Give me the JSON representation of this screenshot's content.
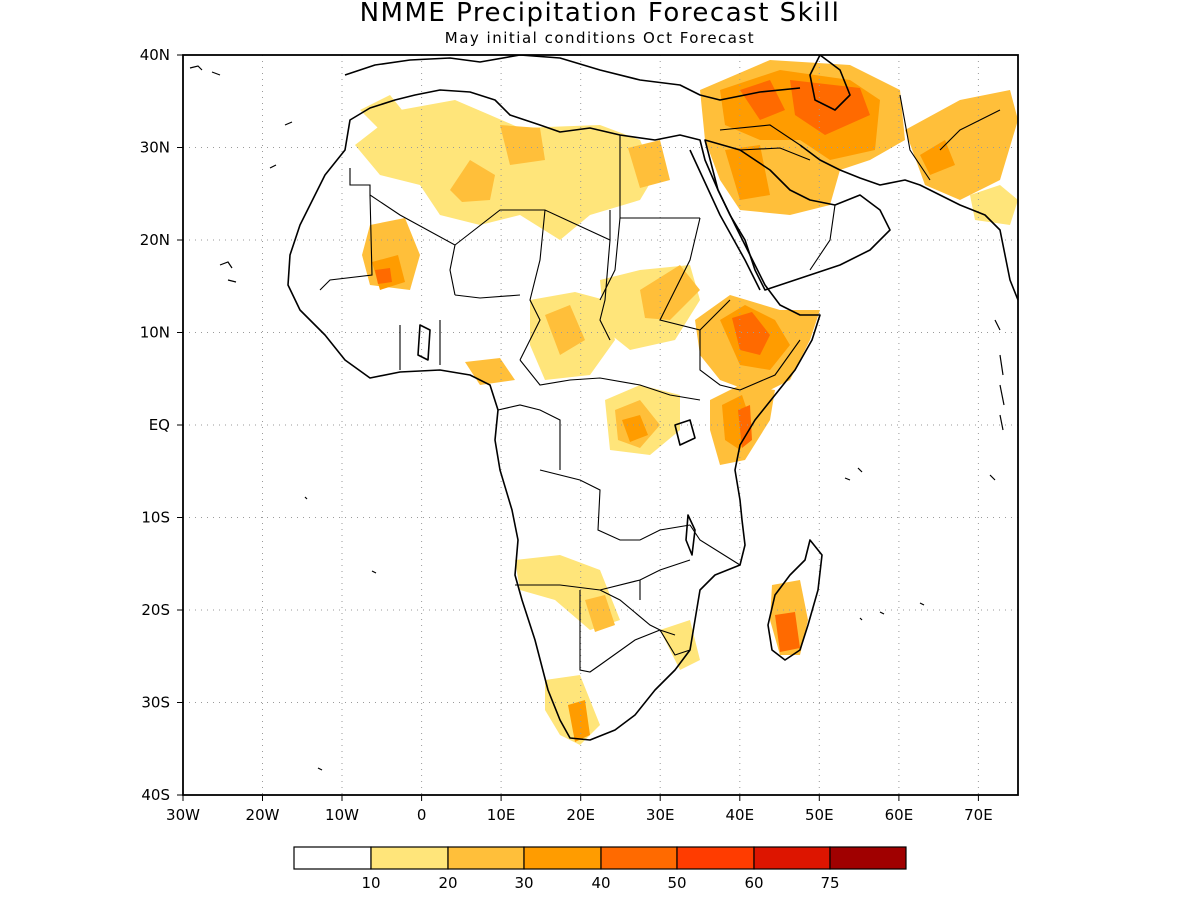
{
  "title": "NMME Precipitation Forecast Skill",
  "subtitle": "May initial conditions  Oct Forecast",
  "map": {
    "projection": "equirectangular",
    "lon_range": [
      -30,
      75
    ],
    "lat_range": [
      -40,
      40
    ],
    "lat_ticks": [
      "40N",
      "30N",
      "20N",
      "10N",
      "EQ",
      "10S",
      "20S",
      "30S",
      "40S"
    ],
    "lon_ticks": [
      "30W",
      "20W",
      "10W",
      "0",
      "10E",
      "20E",
      "30E",
      "40E",
      "50E",
      "60E",
      "70E"
    ],
    "gridlines": "dotted"
  },
  "legend": {
    "tick_labels": [
      "10",
      "20",
      "30",
      "40",
      "50",
      "60",
      "75"
    ],
    "colors": [
      "#ffffff",
      "#ffe57a",
      "#ffbf3a",
      "#ff9c00",
      "#ff6a00",
      "#ff3c00",
      "#dd1500",
      "#a00000"
    ]
  }
}
